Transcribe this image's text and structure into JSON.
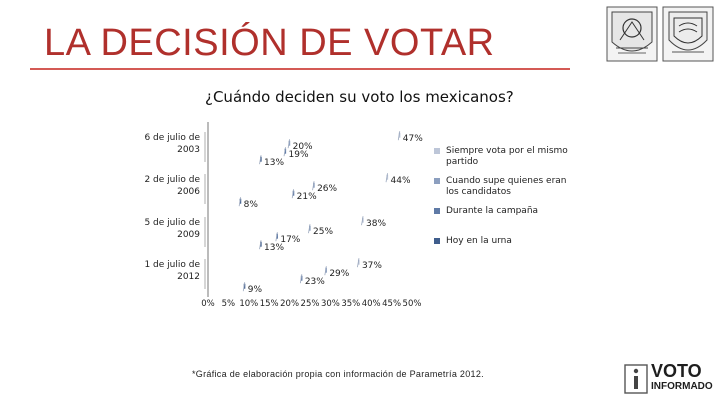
{
  "slide": {
    "title": "LA DECISIÓN DE VOTAR",
    "footnote": "*Gráfica de elaboración propia con información de Parametría 2012."
  },
  "brand": {
    "line1": "VOTO",
    "line2": "INFORMADO"
  },
  "colors": {
    "title": "#b0302c",
    "rule": "#d45a55",
    "axis": "#777777"
  },
  "chart_data": {
    "type": "bar",
    "orientation": "horizontal",
    "title": "¿Cuándo deciden su voto los mexicanos?",
    "categories": [
      "6 de julio de 2003",
      "2 de julio de 2006",
      "5 de julio de 2009",
      "1 de julio de 2012"
    ],
    "series": [
      {
        "name": "Siempre vota por el mismo partido",
        "color": "#bdc6d8",
        "values": [
          47,
          44,
          38,
          37
        ]
      },
      {
        "name": "Cuando supe quienes eran los candidatos",
        "color": "#8c9fbf",
        "values": [
          20,
          26,
          25,
          29
        ]
      },
      {
        "name": "Durante la campaña",
        "color": "#5f7aa6",
        "values": [
          19,
          21,
          17,
          23
        ]
      },
      {
        "name": "Hoy en la urna",
        "color": "#3f5d8c",
        "values": [
          13,
          8,
          13,
          9
        ]
      }
    ],
    "data_labels": [
      [
        "47%",
        "20%",
        "19%",
        "13%"
      ],
      [
        "44%",
        "26%",
        "21%",
        "8%"
      ],
      [
        "38%",
        "25%",
        "17%",
        "13%"
      ],
      [
        "37%",
        "29%",
        "23%",
        "9%"
      ]
    ],
    "xticks": [
      "0%",
      "5%",
      "10%",
      "15%",
      "20%",
      "25%",
      "30%",
      "35%",
      "40%",
      "45%",
      "50%"
    ],
    "xlim": [
      0,
      50
    ],
    "xlabel": "",
    "ylabel": "",
    "legend_position": "right"
  }
}
